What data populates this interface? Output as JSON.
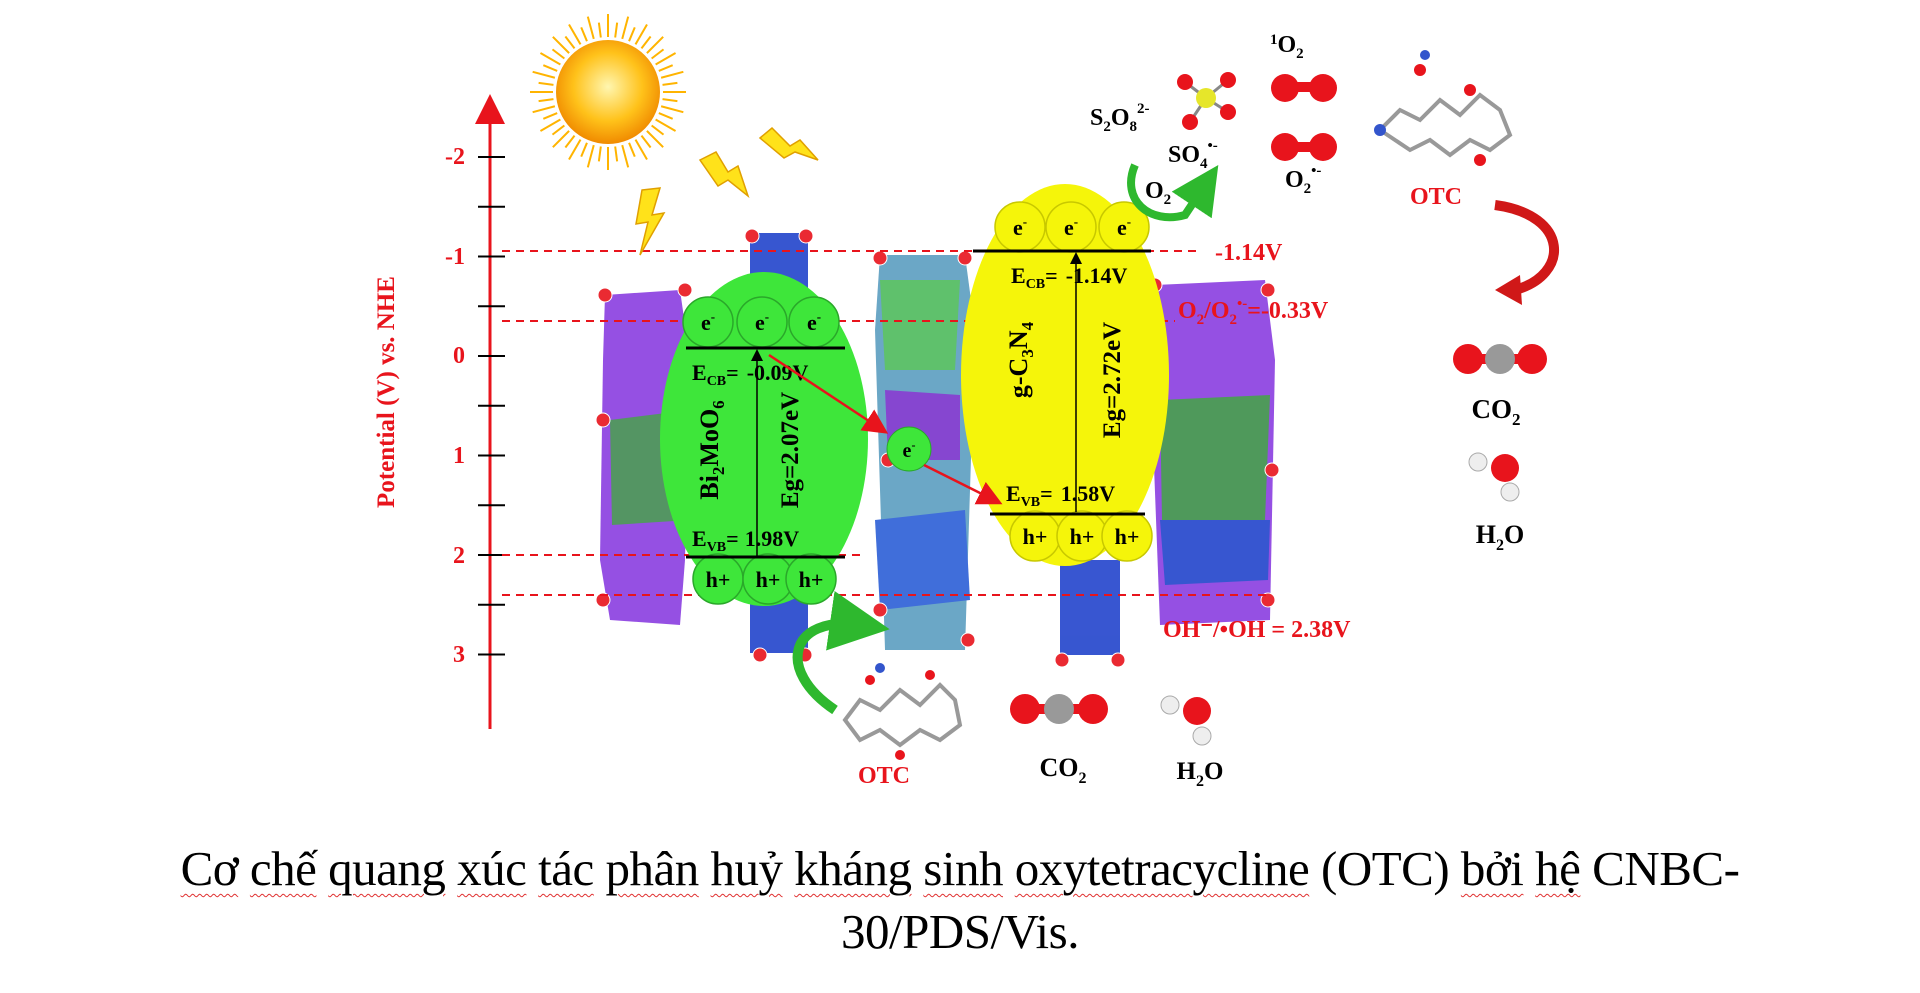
{
  "axis": {
    "label": "Potential (V) vs. NHE",
    "ticks": [
      "-2",
      "-1",
      "0",
      "1",
      "2",
      "3"
    ],
    "color": "#e8141c"
  },
  "potentials": {
    "cb_gcn": "-1.14V",
    "o2_couple": {
      "a": "O",
      "a_sub": "2",
      "b": "/O",
      "b_sub": "2",
      "b_sup": "•-",
      "value": "=-0.33V"
    },
    "oh_couple": "OH⁻/•OH = 2.38V"
  },
  "bi2moo6": {
    "name": {
      "a": "Bi",
      "a_sub": "2",
      "b": "MoO",
      "b_sub": "6"
    },
    "ecb": {
      "sym": "E",
      "sub": "CB",
      "eq": "=",
      "value": "-0.09V"
    },
    "evb": {
      "sym": "E",
      "sub": "VB",
      "eq": "=",
      "value": "1.98V"
    },
    "eg": "Eg=2.07eV",
    "color": "#3ee63a"
  },
  "gc3n4": {
    "name": {
      "a": "g-C",
      "a_sub": "3",
      "b": "N",
      "b_sub": "4"
    },
    "ecb": {
      "sym": "E",
      "sub": "CB",
      "eq": "=",
      "value": "-1.14V"
    },
    "evb": {
      "sym": "E",
      "sub": "VB",
      "eq": "=",
      "value": "1.58V"
    },
    "eg": "Eg=2.72eV",
    "color": "#f5f50a"
  },
  "carriers": {
    "electron": "e",
    "electron_sup": "-",
    "hole": "h+"
  },
  "species": {
    "s2o8": {
      "a": "S",
      "a_sub": "2",
      "b": "O",
      "b_sub": "8",
      "sup": "2-"
    },
    "so4": {
      "a": "SO",
      "a_sub": "4",
      "sup": "•-"
    },
    "o2": {
      "a": "O",
      "a_sub": "2"
    },
    "singlet_o2": {
      "sup": "1",
      "a": "O",
      "a_sub": "2"
    },
    "superoxide": {
      "a": "O",
      "a_sub": "2",
      "sup": "•-"
    },
    "otc": "OTC",
    "co2": {
      "a": "CO",
      "a_sub": "2"
    },
    "h2o": {
      "a": "H",
      "a_sub": "2",
      "b": "O"
    }
  },
  "caption": {
    "line1_words": [
      "Cơ",
      "chế",
      "quang",
      "xúc",
      "tác",
      "phân",
      "huỷ",
      "kháng",
      "sinh",
      "oxytetracycline",
      "(OTC)",
      "bởi",
      "hệ",
      "CNBC-"
    ],
    "line2": "30/PDS/Vis."
  }
}
